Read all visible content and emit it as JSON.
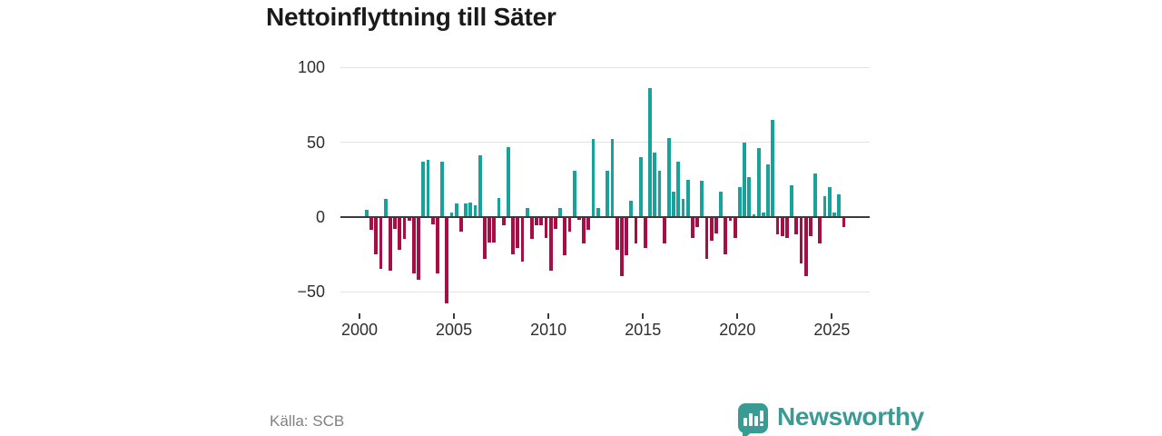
{
  "title": "Nettoinflyttning till Säter",
  "source": "Källa: SCB",
  "branding": {
    "logo_text": "Newsworthy",
    "logo_icon": "bar-chart-speech-bubble-icon"
  },
  "colors": {
    "positive_bar": "#17a29b",
    "negative_bar": "#a50f45",
    "grid_line": "#e3e3e3",
    "zero_line": "#3b3b3b",
    "title_text": "#1a1a1a",
    "axis_text": "#2e2e2e",
    "source_text": "#7f8184",
    "brand_teal": "#3a9a94",
    "background": "#ffffff"
  },
  "chart_data": {
    "type": "bar",
    "title": "Nettoinflyttning till Säter",
    "frequency": "quarterly",
    "start_period": "2000-Q2",
    "end_period": "2025-Q3",
    "grid": "horizontal",
    "legend": "none",
    "y_axis": {
      "tick_values": [
        100,
        50,
        0,
        -50
      ],
      "tick_labels": [
        "100",
        "50",
        "0",
        "−50"
      ],
      "range": [
        -65,
        107
      ]
    },
    "x_axis": {
      "tick_years": [
        2000,
        2005,
        2010,
        2015,
        2020,
        2025
      ],
      "tick_labels": [
        "2000",
        "2005",
        "2010",
        "2015",
        "2020",
        "2025"
      ]
    },
    "values": [
      5,
      -8,
      -24,
      -34,
      12,
      -35,
      -7,
      -21,
      -14,
      -2,
      -37,
      -41,
      37,
      38,
      -4,
      -37,
      37,
      -57,
      3,
      9,
      -9,
      9,
      10,
      8,
      41,
      -27,
      -16,
      -16,
      13,
      -5,
      47,
      -24,
      -20,
      -29,
      6,
      -14,
      -5,
      -5,
      -13,
      -35,
      -7,
      6,
      -25,
      -9,
      31,
      -1,
      -17,
      -8,
      52,
      6,
      0,
      31,
      52,
      -21,
      -39,
      -25,
      11,
      -17,
      40,
      -20,
      86,
      43,
      31,
      -17,
      53,
      17,
      37,
      12,
      25,
      -13,
      -6,
      24,
      -27,
      -15,
      -10,
      17,
      -24,
      -2,
      -13,
      20,
      50,
      27,
      2,
      46,
      3,
      35,
      65,
      -11,
      -12,
      -13,
      21,
      -11,
      -30,
      -39,
      -12,
      29,
      -17,
      14,
      20,
      3,
      15,
      -6
    ]
  }
}
